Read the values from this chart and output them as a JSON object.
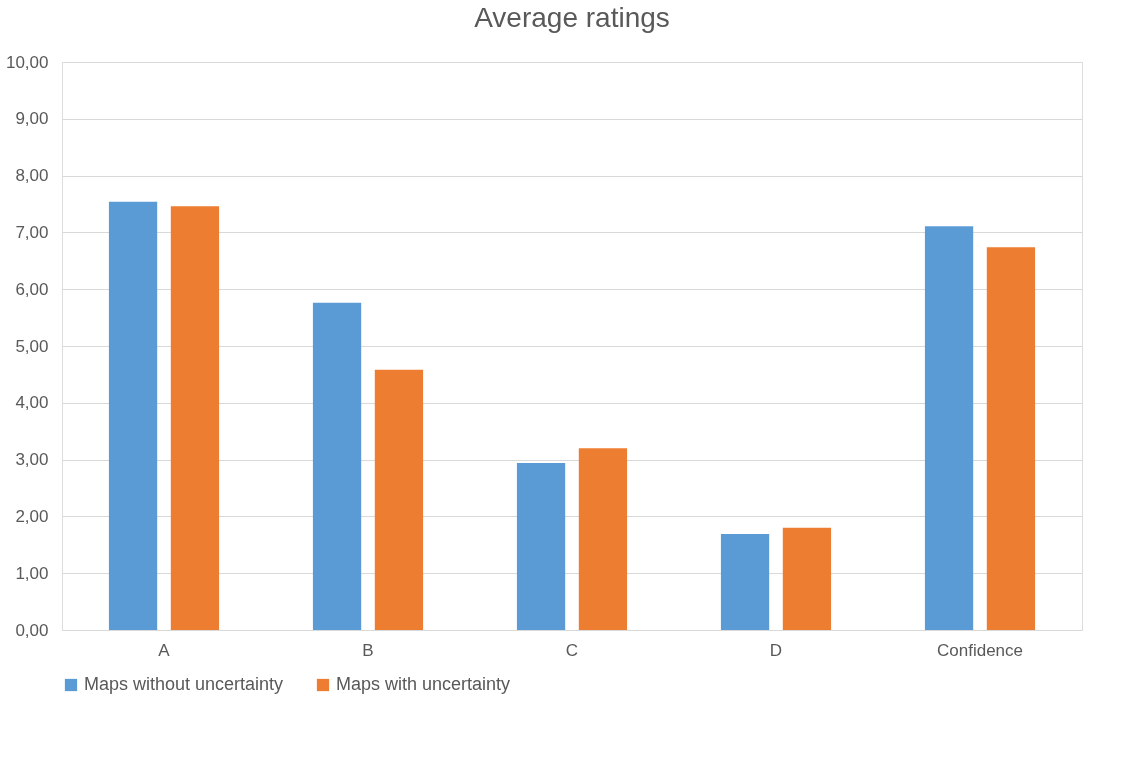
{
  "chart_data": {
    "type": "bar",
    "title": "Average ratings",
    "categories": [
      "A",
      "B",
      "C",
      "D",
      "Confidence"
    ],
    "series": [
      {
        "name": "Maps without uncertainty",
        "color": "#5b9bd5",
        "values": [
          7.54,
          5.76,
          2.94,
          1.69,
          7.11
        ]
      },
      {
        "name": "Maps with uncertainty",
        "color": "#ed7d31",
        "values": [
          7.46,
          4.58,
          3.2,
          1.8,
          6.74
        ]
      }
    ],
    "ylim": [
      0,
      10
    ],
    "yticks": [
      {
        "value": 0,
        "label": "0,00"
      },
      {
        "value": 1,
        "label": "1,00"
      },
      {
        "value": 2,
        "label": "2,00"
      },
      {
        "value": 3,
        "label": "3,00"
      },
      {
        "value": 4,
        "label": "4,00"
      },
      {
        "value": 5,
        "label": "5,00"
      },
      {
        "value": 6,
        "label": "6,00"
      },
      {
        "value": 7,
        "label": "7,00"
      },
      {
        "value": 8,
        "label": "8,00"
      },
      {
        "value": 9,
        "label": "9,00"
      },
      {
        "value": 10,
        "label": "10,00"
      }
    ],
    "grid": "y",
    "legend": "bottom"
  }
}
